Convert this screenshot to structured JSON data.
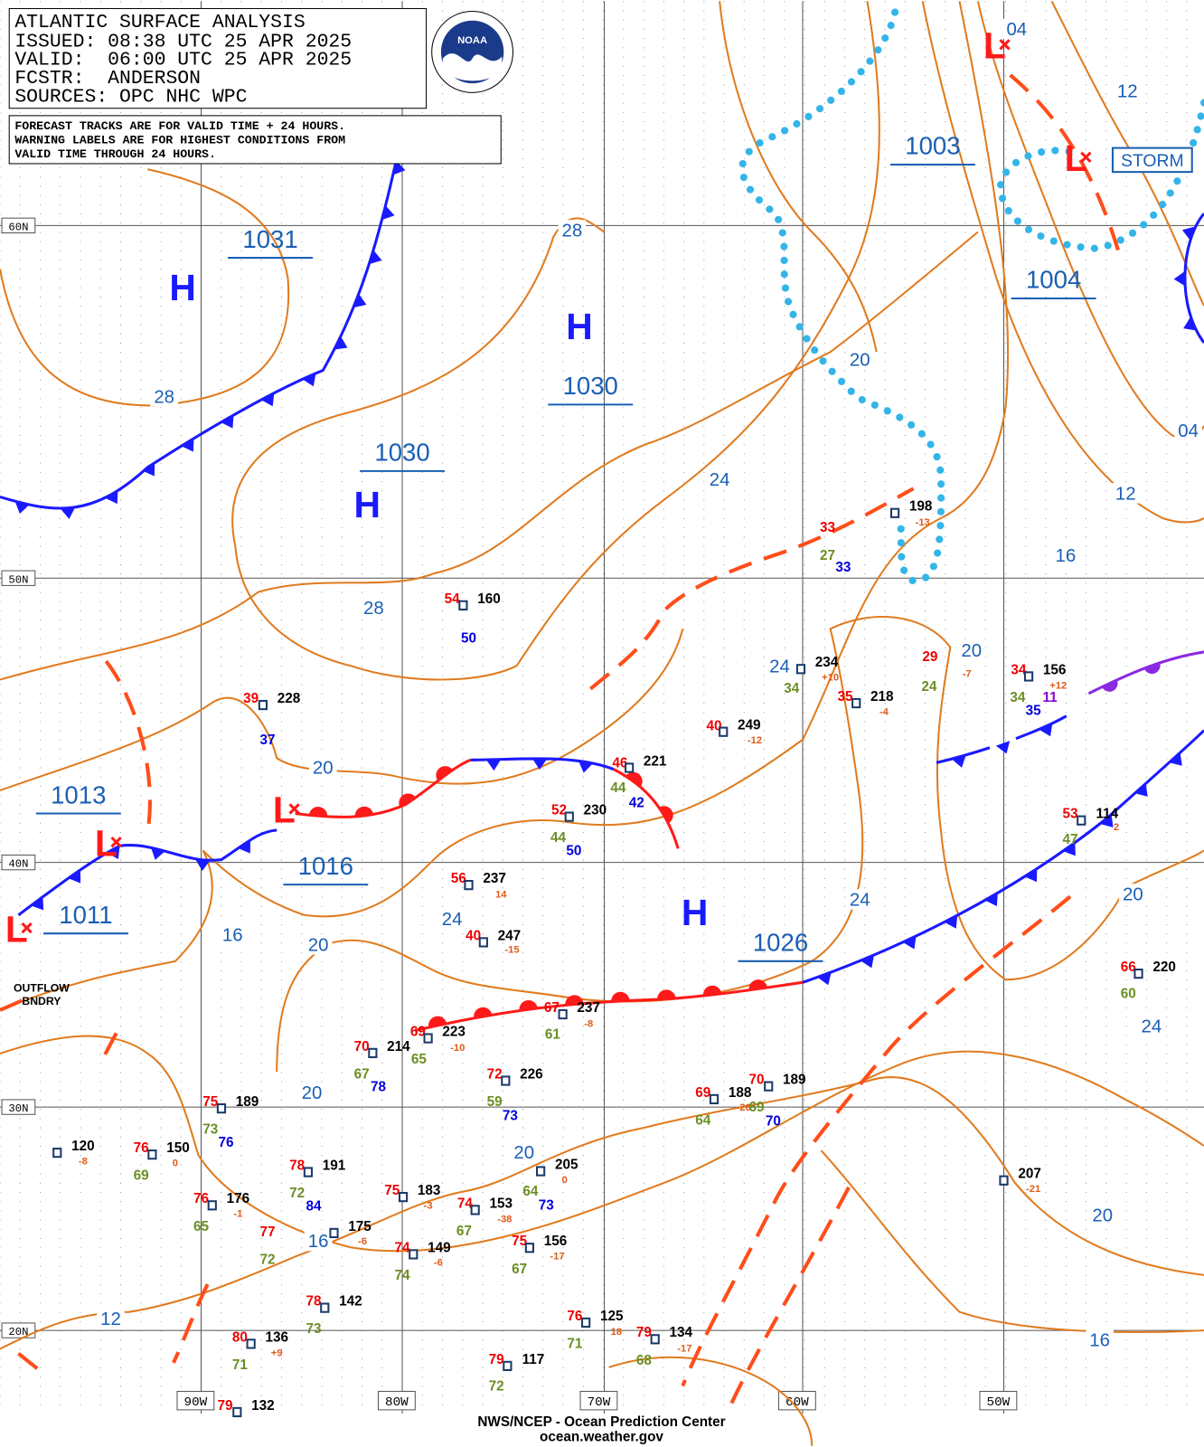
{
  "header": {
    "title": "ATLANTIC SURFACE ANALYSIS",
    "issued": "ISSUED: 08:38 UTC 25 APR 2025",
    "valid": "VALID:  06:00 UTC 25 APR 2025",
    "forecaster": "FCSTR:  ANDERSON",
    "sources": "SOURCES: OPC NHC WPC",
    "logo": "NOAA",
    "note": [
      "FORECAST TRACKS ARE FOR VALID TIME + 24 HOURS.",
      "WARNING LABELS ARE FOR HIGHEST CONDITIONS FROM",
      "VALID TIME THROUGH 24 HOURS."
    ]
  },
  "grid": {
    "lat": [
      "60N",
      "50N",
      "40N",
      "30N",
      "20N"
    ],
    "lon": [
      "90W",
      "80W",
      "70W",
      "60W",
      "50W"
    ]
  },
  "pressure_labels": [
    "1031",
    "1030",
    "1030",
    "1003",
    "1004",
    "1013",
    "1016",
    "1011",
    "1026"
  ],
  "high_symbols": [
    "H",
    "H",
    "H",
    "H"
  ],
  "low_symbols": [
    "L",
    "L",
    "L",
    "L",
    "L"
  ],
  "isobar_labels": [
    "28",
    "20",
    "28",
    "24",
    "12",
    "16",
    "28",
    "20",
    "24",
    "20",
    "24",
    "16",
    "20",
    "24",
    "20",
    "24",
    "20",
    "20",
    "16",
    "20",
    "12",
    "16",
    "12",
    "04",
    "04"
  ],
  "annotations": {
    "storm": "STORM",
    "outflow": [
      "OUTFLOW",
      "BNDRY"
    ]
  },
  "stations": [
    [
      "54",
      "temp"
    ],
    [
      "160",
      "pres"
    ],
    [
      "50",
      "blue"
    ],
    [
      "39",
      "temp"
    ],
    [
      "228",
      "pres"
    ],
    [
      "37",
      "blue"
    ],
    [
      "33",
      "temp"
    ],
    [
      "198",
      "pres"
    ],
    [
      "-13",
      "tend"
    ],
    [
      "27",
      "dew"
    ],
    [
      "33",
      "blue"
    ],
    [
      "29",
      "temp"
    ],
    [
      "24",
      "dew"
    ],
    [
      "-7",
      "tend"
    ],
    [
      "34",
      "temp"
    ],
    [
      "156",
      "pres"
    ],
    [
      "+12",
      "tend"
    ],
    [
      "34",
      "dew"
    ],
    [
      "11",
      "purple"
    ],
    [
      "35",
      "blue"
    ],
    [
      "234",
      "pres"
    ],
    [
      "+10",
      "tend"
    ],
    [
      "35",
      "temp"
    ],
    [
      "218",
      "pres"
    ],
    [
      "-4",
      "tend"
    ],
    [
      "34",
      "dew"
    ],
    [
      "40",
      "temp"
    ],
    [
      "249",
      "pres"
    ],
    [
      "-12",
      "tend"
    ],
    [
      "46",
      "temp"
    ],
    [
      "221",
      "pres"
    ],
    [
      "44",
      "dew"
    ],
    [
      "42",
      "blue"
    ],
    [
      "52",
      "temp"
    ],
    [
      "230",
      "pres"
    ],
    [
      "44",
      "dew"
    ],
    [
      "50",
      "blue"
    ],
    [
      "53",
      "temp"
    ],
    [
      "114",
      "pres"
    ],
    [
      "2",
      "tend"
    ],
    [
      "47",
      "dew"
    ],
    [
      "56",
      "temp"
    ],
    [
      "237",
      "pres"
    ],
    [
      "14",
      "tend"
    ],
    [
      "40",
      "temp"
    ],
    [
      "247",
      "pres"
    ],
    [
      "-15",
      "tend"
    ],
    [
      "66",
      "temp"
    ],
    [
      "220",
      "pres"
    ],
    [
      "60",
      "dew"
    ],
    [
      "67",
      "temp"
    ],
    [
      "237",
      "pres"
    ],
    [
      "-8",
      "tend"
    ],
    [
      "61",
      "dew"
    ],
    [
      "69",
      "temp"
    ],
    [
      "223",
      "pres"
    ],
    [
      "-10",
      "tend"
    ],
    [
      "65",
      "dew"
    ],
    [
      "70",
      "temp"
    ],
    [
      "214",
      "pres"
    ],
    [
      "67",
      "dew"
    ],
    [
      "78",
      "blue"
    ],
    [
      "72",
      "temp"
    ],
    [
      "226",
      "pres"
    ],
    [
      "59",
      "dew"
    ],
    [
      "73",
      "blue"
    ],
    [
      "69",
      "temp"
    ],
    [
      "188",
      "pres"
    ],
    [
      "-26",
      "tend"
    ],
    [
      "64",
      "dew"
    ],
    [
      "70",
      "temp"
    ],
    [
      "189",
      "pres"
    ],
    [
      "69",
      "dew"
    ],
    [
      "70",
      "blue"
    ],
    [
      "75",
      "temp"
    ],
    [
      "189",
      "pres"
    ],
    [
      "73",
      "dew"
    ],
    [
      "76",
      "blue"
    ],
    [
      "120",
      "pres"
    ],
    [
      "-8",
      "tend"
    ],
    [
      "76",
      "temp"
    ],
    [
      "150",
      "pres"
    ],
    [
      "0",
      "tend"
    ],
    [
      "69",
      "dew"
    ],
    [
      "205",
      "pres"
    ],
    [
      "0",
      "tend"
    ],
    [
      "64",
      "dew"
    ],
    [
      "73",
      "blue"
    ],
    [
      "78",
      "temp"
    ],
    [
      "191",
      "pres"
    ],
    [
      "72",
      "dew"
    ],
    [
      "84",
      "blue"
    ],
    [
      "207",
      "pres"
    ],
    [
      "-21",
      "tend"
    ],
    [
      "76",
      "temp"
    ],
    [
      "176",
      "pres"
    ],
    [
      "-1",
      "tend"
    ],
    [
      "65",
      "dew"
    ],
    [
      "75",
      "temp"
    ],
    [
      "183",
      "pres"
    ],
    [
      "-3",
      "tend"
    ],
    [
      "74",
      "temp"
    ],
    [
      "153",
      "pres"
    ],
    [
      "-38",
      "tend"
    ],
    [
      "67",
      "dew"
    ],
    [
      "77",
      "temp"
    ],
    [
      "175",
      "pres"
    ],
    [
      "-6",
      "tend"
    ],
    [
      "72",
      "dew"
    ],
    [
      "74",
      "temp"
    ],
    [
      "149",
      "pres"
    ],
    [
      "-6",
      "tend"
    ],
    [
      "74",
      "dew"
    ],
    [
      "75",
      "temp"
    ],
    [
      "156",
      "pres"
    ],
    [
      "-17",
      "tend"
    ],
    [
      "67",
      "dew"
    ],
    [
      "78",
      "temp"
    ],
    [
      "142",
      "pres"
    ],
    [
      "73",
      "dew"
    ],
    [
      "76",
      "temp"
    ],
    [
      "125",
      "pres"
    ],
    [
      "18",
      "tend"
    ],
    [
      "71",
      "dew"
    ],
    [
      "80",
      "temp"
    ],
    [
      "136",
      "pres"
    ],
    [
      "+9",
      "tend"
    ],
    [
      "71",
      "dew"
    ],
    [
      "79",
      "temp"
    ],
    [
      "134",
      "pres"
    ],
    [
      "-17",
      "tend"
    ],
    [
      "68",
      "dew"
    ],
    [
      "79",
      "temp"
    ],
    [
      "117",
      "pres"
    ],
    [
      "72",
      "dew"
    ],
    [
      "79",
      "temp"
    ],
    [
      "132",
      "pres"
    ]
  ],
  "footer": [
    "NWS/NCEP - Ocean Prediction Center",
    "ocean.weather.gov"
  ]
}
